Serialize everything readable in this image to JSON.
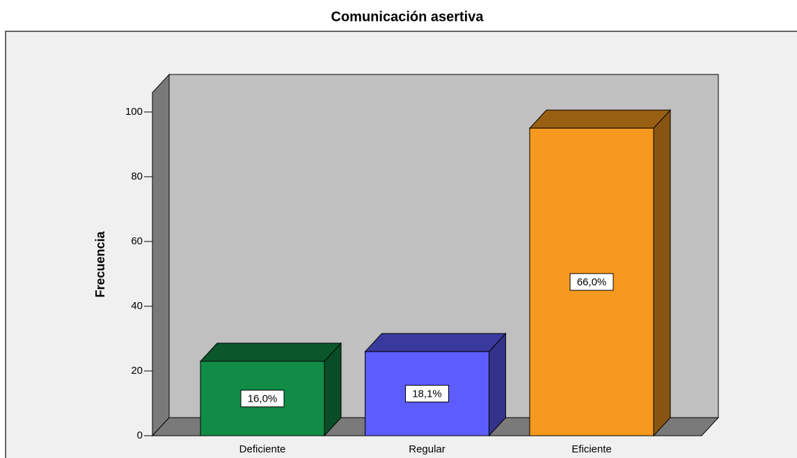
{
  "chart_data": {
    "type": "bar3d",
    "title": "Comunicación asertiva",
    "y_label": "Frecuencia",
    "categories": [
      "Deficiente",
      "Regular",
      "Eficiente"
    ],
    "values": [
      23,
      26,
      95
    ],
    "percent_labels": [
      "16,0%",
      "18,1%",
      "66,0%"
    ],
    "colors": [
      "#108c46",
      "#5c5cff",
      "#f7991f"
    ],
    "ylim": [
      0,
      106
    ],
    "yticks": [
      0,
      20,
      40,
      60,
      80,
      100
    ]
  }
}
